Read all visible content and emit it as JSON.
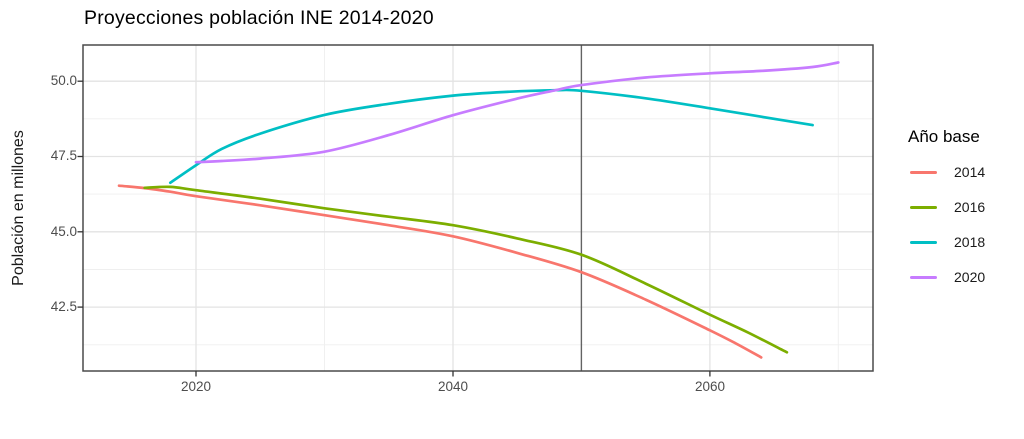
{
  "chart_data": {
    "type": "line",
    "title": "Proyecciones población INE 2014-2020",
    "xlabel": "",
    "ylabel": "Población en millones",
    "legend_title": "Año base",
    "legend_position": "right",
    "grid": "major+minor",
    "panel_border": true,
    "xlim": [
      2011.2,
      2072.7
    ],
    "ylim": [
      40.38,
      51.2
    ],
    "x_major_ticks": [
      2020,
      2040,
      2060
    ],
    "x_tick_labels": [
      "2020",
      "2040",
      "2060"
    ],
    "x_minor_ticks": [
      2030,
      2050,
      2070
    ],
    "y_major_ticks": [
      42.5,
      45.0,
      47.5,
      50.0
    ],
    "y_tick_labels": [
      "42.5",
      "45.0",
      "47.5",
      "50.0"
    ],
    "y_minor_ticks": [
      41.25,
      43.75,
      46.25,
      48.75
    ],
    "vline": {
      "x": 2050,
      "color": "#636363"
    },
    "colors": {
      "grid_major": "#e3e3e3",
      "grid_minor": "#efefef",
      "panel_border": "#4a4a4a",
      "tick_mark": "#333333",
      "axis_text": "#4d4d4d"
    },
    "series": [
      {
        "name": "2014",
        "color": "#F8766D",
        "points": [
          [
            2014,
            46.53
          ],
          [
            2016,
            46.45
          ],
          [
            2018,
            46.33
          ],
          [
            2020,
            46.18
          ],
          [
            2025,
            45.88
          ],
          [
            2030,
            45.55
          ],
          [
            2035,
            45.22
          ],
          [
            2040,
            44.85
          ],
          [
            2045,
            44.3
          ],
          [
            2050,
            43.66
          ],
          [
            2055,
            42.75
          ],
          [
            2060,
            41.73
          ],
          [
            2062,
            41.3
          ],
          [
            2064,
            40.83
          ]
        ]
      },
      {
        "name": "2016",
        "color": "#7CAE00",
        "points": [
          [
            2016,
            46.46
          ],
          [
            2018,
            46.49
          ],
          [
            2020,
            46.38
          ],
          [
            2025,
            46.1
          ],
          [
            2030,
            45.78
          ],
          [
            2035,
            45.5
          ],
          [
            2040,
            45.22
          ],
          [
            2045,
            44.78
          ],
          [
            2050,
            44.24
          ],
          [
            2055,
            43.28
          ],
          [
            2060,
            42.25
          ],
          [
            2063,
            41.65
          ],
          [
            2066,
            41.0
          ]
        ]
      },
      {
        "name": "2018",
        "color": "#00BFC4",
        "points": [
          [
            2018,
            46.63
          ],
          [
            2020,
            47.21
          ],
          [
            2022,
            47.75
          ],
          [
            2025,
            48.26
          ],
          [
            2030,
            48.88
          ],
          [
            2035,
            49.25
          ],
          [
            2040,
            49.52
          ],
          [
            2044,
            49.64
          ],
          [
            2048,
            49.7
          ],
          [
            2050,
            49.68
          ],
          [
            2055,
            49.43
          ],
          [
            2060,
            49.1
          ],
          [
            2064,
            48.82
          ],
          [
            2068,
            48.54
          ]
        ]
      },
      {
        "name": "2020",
        "color": "#C77CFF",
        "points": [
          [
            2020,
            47.31
          ],
          [
            2022,
            47.35
          ],
          [
            2025,
            47.43
          ],
          [
            2030,
            47.66
          ],
          [
            2035,
            48.21
          ],
          [
            2040,
            48.87
          ],
          [
            2045,
            49.42
          ],
          [
            2048,
            49.7
          ],
          [
            2050,
            49.87
          ],
          [
            2055,
            50.12
          ],
          [
            2060,
            50.26
          ],
          [
            2064,
            50.34
          ],
          [
            2068,
            50.47
          ],
          [
            2070,
            50.62
          ]
        ]
      }
    ],
    "legend": {
      "title": "Año base",
      "entries": [
        {
          "label": "2014",
          "color": "#F8766D"
        },
        {
          "label": "2016",
          "color": "#7CAE00"
        },
        {
          "label": "2018",
          "color": "#00BFC4"
        },
        {
          "label": "2020",
          "color": "#C77CFF"
        }
      ]
    }
  }
}
